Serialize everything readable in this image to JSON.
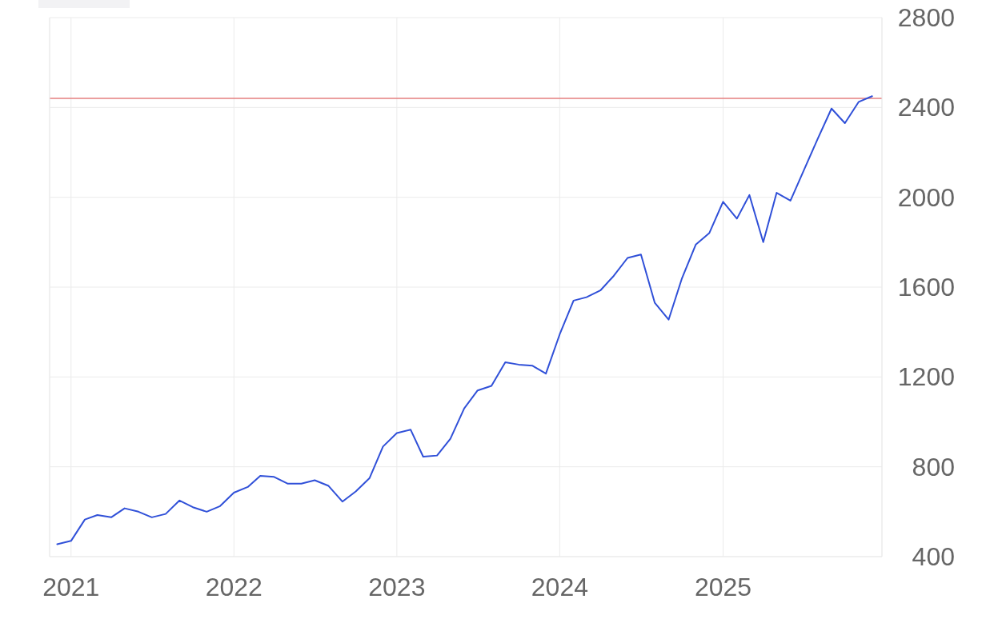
{
  "chart_data": {
    "type": "line",
    "x": [
      "2020-12",
      "2021-01",
      "2021-02",
      "2021-03",
      "2021-04",
      "2021-05",
      "2021-06",
      "2021-07",
      "2021-08",
      "2021-09",
      "2021-10",
      "2021-11",
      "2021-12",
      "2022-01",
      "2022-02",
      "2022-03",
      "2022-04",
      "2022-05",
      "2022-06",
      "2022-07",
      "2022-08",
      "2022-09",
      "2022-10",
      "2022-11",
      "2022-12",
      "2023-01",
      "2023-02",
      "2023-03",
      "2023-04",
      "2023-05",
      "2023-06",
      "2023-07",
      "2023-08",
      "2023-09",
      "2023-10",
      "2023-11",
      "2023-12",
      "2024-01",
      "2024-02",
      "2024-03",
      "2024-04",
      "2024-05",
      "2024-06",
      "2024-07",
      "2024-08",
      "2024-09",
      "2024-10",
      "2024-11",
      "2024-12",
      "2025-01",
      "2025-02",
      "2025-03",
      "2025-04",
      "2025-05",
      "2025-06",
      "2025-07",
      "2025-08",
      "2025-09",
      "2025-10",
      "2025-11",
      "2025-12"
    ],
    "series": [
      {
        "color": "#3050d8",
        "values": [
          455,
          470,
          565,
          585,
          575,
          615,
          600,
          575,
          590,
          650,
          620,
          600,
          625,
          685,
          710,
          760,
          755,
          725,
          725,
          740,
          715,
          645,
          690,
          750,
          890,
          950,
          965,
          845,
          850,
          925,
          1060,
          1140,
          1160,
          1265,
          1255,
          1250,
          1215,
          1390,
          1540,
          1555,
          1585,
          1650,
          1730,
          1745,
          1530,
          1455,
          1640,
          1790,
          1840,
          1980,
          1905,
          2010,
          1800,
          2020,
          1985,
          2120,
          2260,
          2395,
          2330,
          2425,
          2450
        ]
      }
    ],
    "xlim": [
      "2020-11-14",
      "2025-12-23"
    ],
    "xticks": [
      "2021",
      "2022",
      "2023",
      "2024",
      "2025"
    ],
    "ylim": [
      400,
      2800
    ],
    "yticks": [
      400,
      800,
      1200,
      1600,
      2000,
      2400,
      2800
    ],
    "grid": true,
    "line_style": "solid",
    "ref_lines": [
      {
        "axis": "y",
        "value": 2440,
        "color": "#e57f7f"
      }
    ]
  }
}
